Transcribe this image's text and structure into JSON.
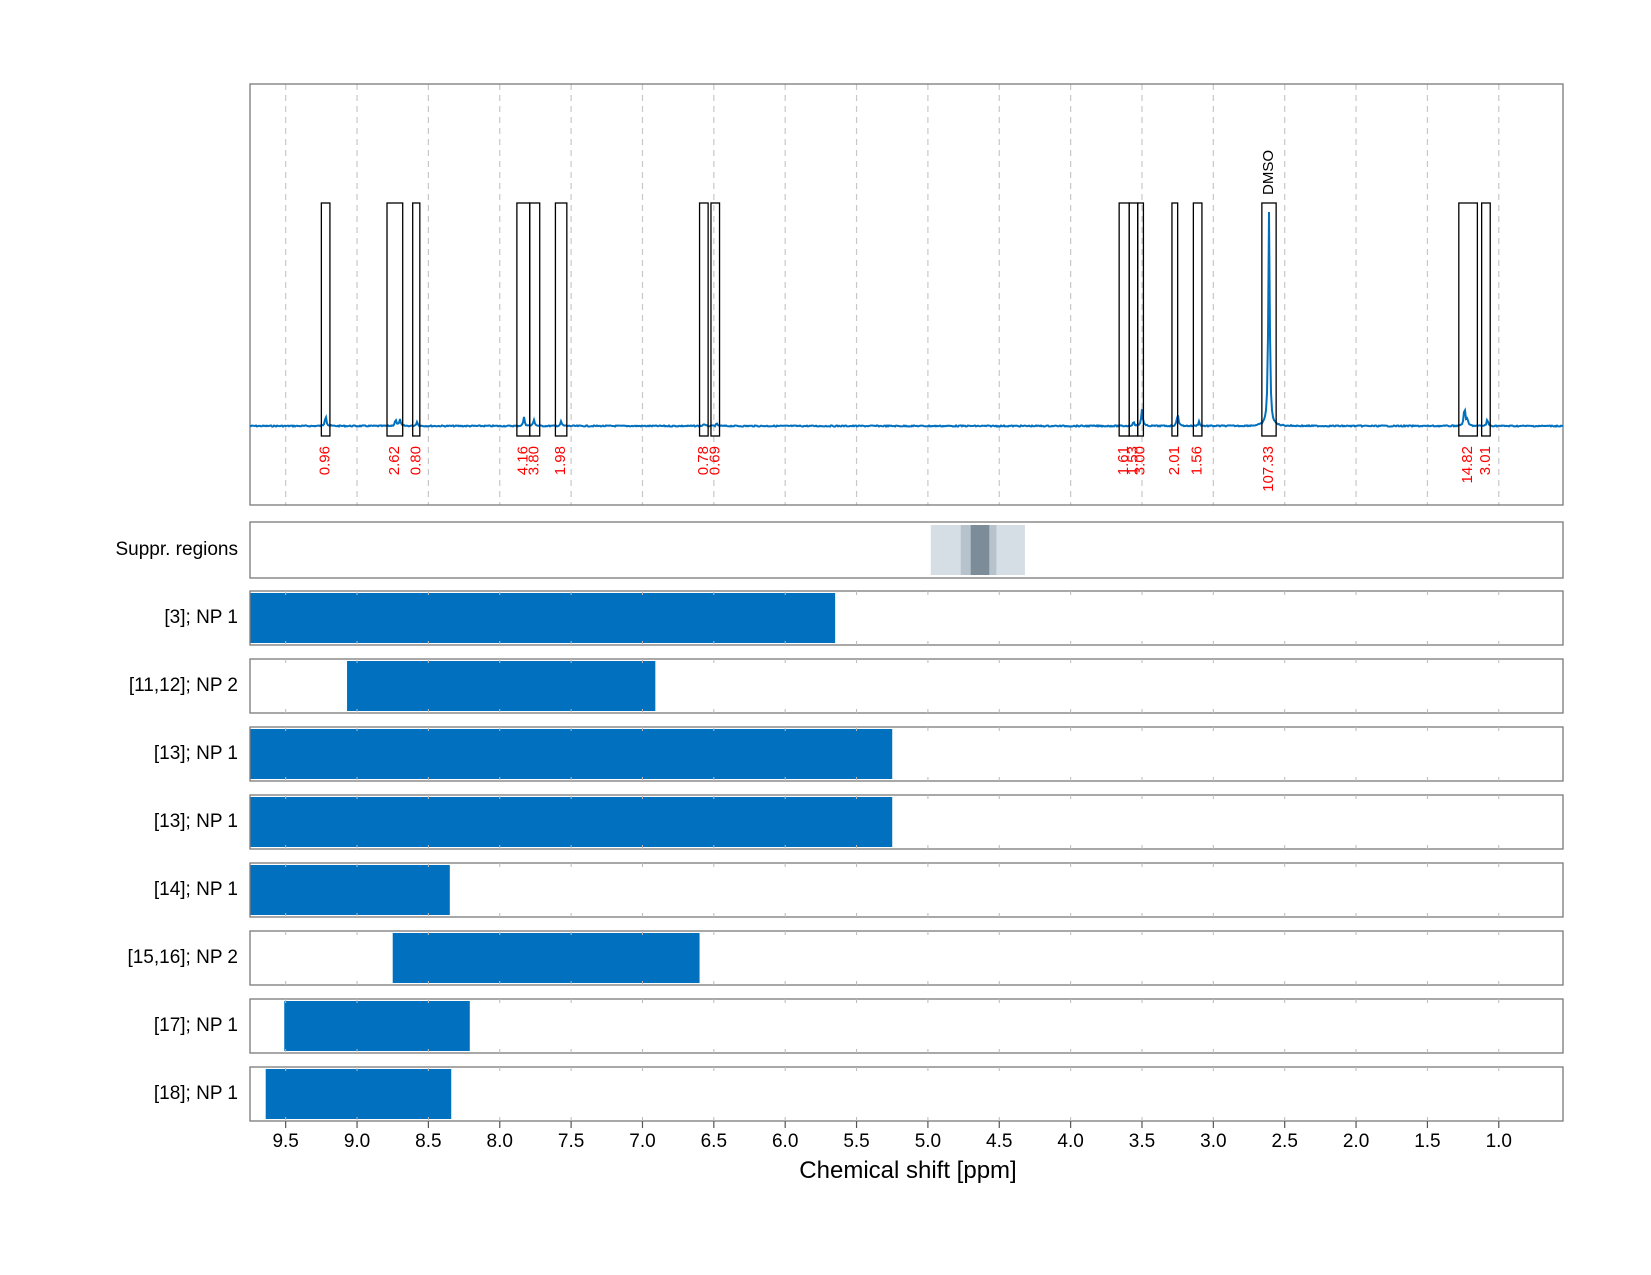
{
  "chart_data": {
    "type": "nmr-spectrum-with-range-bars",
    "xlabel": "Chemical shift [ppm]",
    "xlim": [
      9.75,
      0.55
    ],
    "x_ticks": [
      "9.5",
      "9.0",
      "8.5",
      "8.0",
      "7.5",
      "7.0",
      "6.5",
      "6.0",
      "5.5",
      "5.0",
      "4.5",
      "4.0",
      "3.5",
      "3.0",
      "2.5",
      "2.0",
      "1.5",
      "1.0"
    ],
    "grid": true,
    "colors": {
      "spectrum": "#0070bf",
      "bars": "#0070bf",
      "integral_text": "#ff0000",
      "suppression_light": "#d6dee5",
      "suppression_mid": "#b6c3cd",
      "suppression_dark": "#7c8c99"
    },
    "spectrum_peaks": [
      {
        "ppm": 9.22,
        "height": 0.05
      },
      {
        "ppm": 8.73,
        "height": 0.03
      },
      {
        "ppm": 8.7,
        "height": 0.03
      },
      {
        "ppm": 8.58,
        "height": 0.02
      },
      {
        "ppm": 7.83,
        "height": 0.04
      },
      {
        "ppm": 7.76,
        "height": 0.03
      },
      {
        "ppm": 7.57,
        "height": 0.02
      },
      {
        "ppm": 6.57,
        "height": 0.01
      },
      {
        "ppm": 6.48,
        "height": 0.01
      },
      {
        "ppm": 3.56,
        "height": 0.02
      },
      {
        "ppm": 3.5,
        "height": 0.08
      },
      {
        "ppm": 3.25,
        "height": 0.06
      },
      {
        "ppm": 3.1,
        "height": 0.02
      },
      {
        "ppm": 2.61,
        "height": 1.0
      },
      {
        "ppm": 1.24,
        "height": 0.09
      },
      {
        "ppm": 1.22,
        "height": 0.03
      },
      {
        "ppm": 1.08,
        "height": 0.03
      }
    ],
    "integration_regions": [
      {
        "from": 9.25,
        "to": 9.19,
        "integral": "0.96"
      },
      {
        "from": 8.79,
        "to": 8.68,
        "integral": "2.62"
      },
      {
        "from": 8.61,
        "to": 8.56,
        "integral": "0.80"
      },
      {
        "from": 7.88,
        "to": 7.79,
        "integral": "4.16"
      },
      {
        "from": 7.79,
        "to": 7.72,
        "integral": "3.80"
      },
      {
        "from": 7.61,
        "to": 7.53,
        "integral": "1.98"
      },
      {
        "from": 6.6,
        "to": 6.54,
        "integral": "0.78"
      },
      {
        "from": 6.52,
        "to": 6.46,
        "integral": "0.69"
      },
      {
        "from": 3.66,
        "to": 3.59,
        "integral": "1.61"
      },
      {
        "from": 3.59,
        "to": 3.53,
        "integral": "1.53"
      },
      {
        "from": 3.53,
        "to": 3.49,
        "integral": "3.00"
      },
      {
        "from": 3.29,
        "to": 3.25,
        "integral": "2.01"
      },
      {
        "from": 3.14,
        "to": 3.08,
        "integral": "1.56"
      },
      {
        "from": 2.66,
        "to": 2.56,
        "integral": "107.33",
        "label": "DMSO"
      },
      {
        "from": 1.28,
        "to": 1.15,
        "integral": "14.82"
      },
      {
        "from": 1.12,
        "to": 1.06,
        "integral": "3.01"
      }
    ],
    "suppression": {
      "label": "Suppr. regions",
      "regions": [
        {
          "from": 4.98,
          "to": 4.32,
          "level": "light"
        },
        {
          "from": 4.77,
          "to": 4.52,
          "level": "mid"
        },
        {
          "from": 4.7,
          "to": 4.57,
          "level": "dark"
        }
      ]
    },
    "range_rows": [
      {
        "label": "[3]; NP 1",
        "from": 9.75,
        "to": 5.65
      },
      {
        "label": "[11,12]; NP 2",
        "from": 9.07,
        "to": 6.91
      },
      {
        "label": "[13]; NP 1",
        "from": 9.75,
        "to": 5.25
      },
      {
        "label": "[13]; NP 1",
        "from": 9.75,
        "to": 5.25
      },
      {
        "label": "[14]; NP 1",
        "from": 9.75,
        "to": 8.35
      },
      {
        "label": "[15,16]; NP 2",
        "from": 8.75,
        "to": 6.6
      },
      {
        "label": "[17]; NP 1",
        "from": 9.51,
        "to": 8.21
      },
      {
        "label": "[18]; NP 1",
        "from": 9.64,
        "to": 8.34
      }
    ]
  }
}
